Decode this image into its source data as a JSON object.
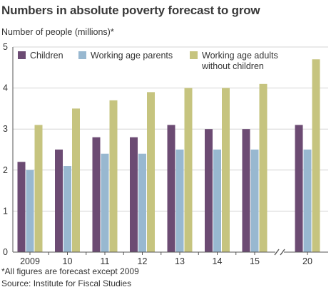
{
  "chart_data": {
    "type": "bar",
    "title": "Numbers in absolute poverty forecast to grow",
    "ylabel": "Number of people (millions)*",
    "xlabel": "",
    "categories": [
      "2009",
      "10",
      "11",
      "12",
      "13",
      "14",
      "15",
      "20"
    ],
    "series": [
      {
        "name": "Children",
        "color": "#6c4b73",
        "values": [
          2.2,
          2.5,
          2.8,
          2.8,
          3.1,
          3.0,
          3.0,
          3.1
        ]
      },
      {
        "name": "Working age parents",
        "color": "#98b8d0",
        "values": [
          2.0,
          2.1,
          2.4,
          2.4,
          2.5,
          2.5,
          2.5,
          2.5
        ]
      },
      {
        "name": "Working age adults without children",
        "legend_lines": [
          "Working age adults",
          "without children"
        ],
        "color": "#c6c47f",
        "values": [
          3.1,
          3.5,
          3.7,
          3.9,
          4.0,
          4.0,
          4.1,
          4.7
        ]
      }
    ],
    "yticks": [
      0,
      1,
      2,
      3,
      4,
      5
    ],
    "ylim": [
      0,
      5
    ],
    "grid": true,
    "legend_position": "top",
    "axis_break": "between 15 and 20"
  },
  "notes": {
    "footnote": "*All figures are forecast except 2009",
    "source": "Source: Institute for Fiscal Studies"
  }
}
